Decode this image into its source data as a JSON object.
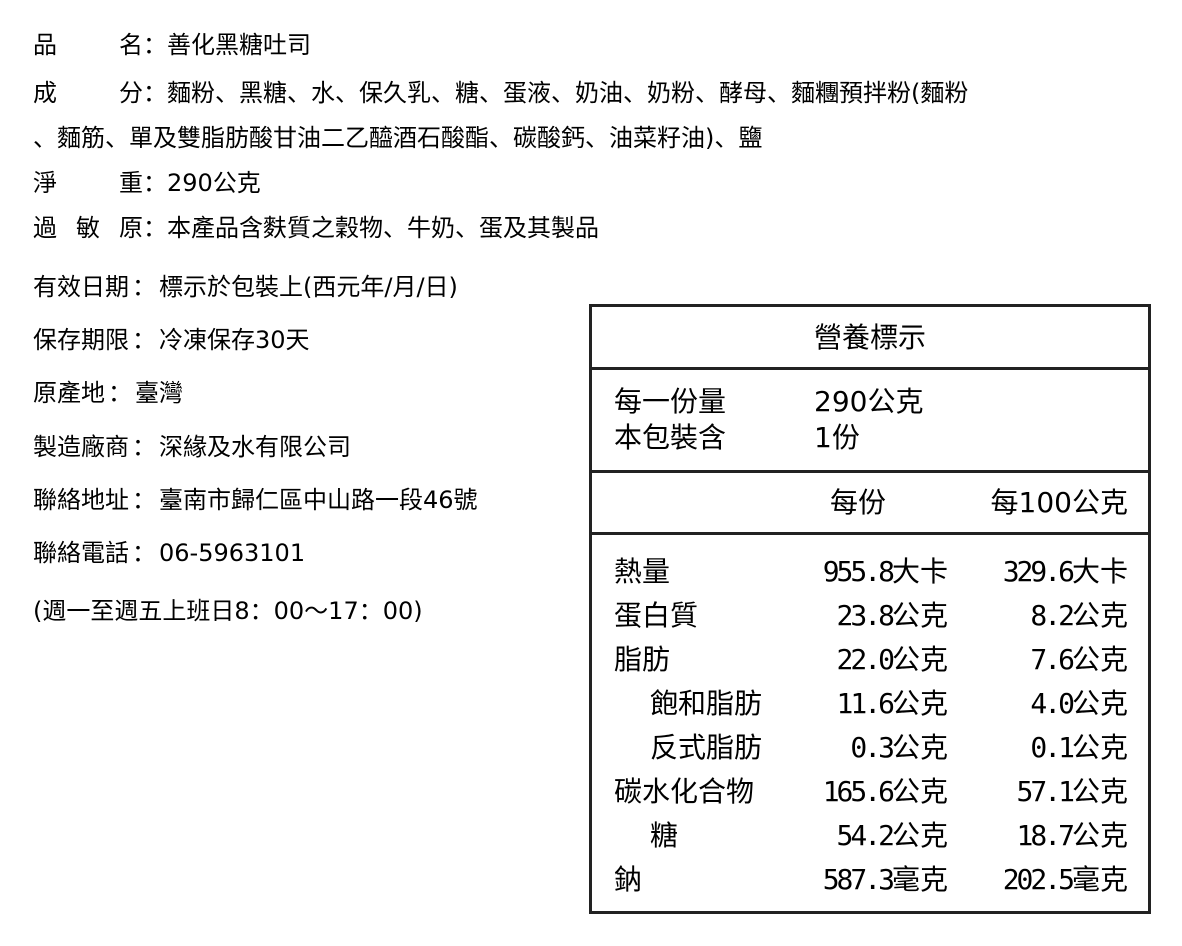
{
  "info_top": [
    {
      "label": "品名",
      "value": "善化黑糖吐司"
    },
    {
      "label": "成分",
      "value": "麵粉、黑糖、水、保久乳、糖、蛋液、奶油、奶粉、酵母、麵糰預拌粉(麵粉"
    },
    {
      "label": "",
      "value": "、麵筋、單及雙脂肪酸甘油二乙醯酒石酸酯、碳酸鈣、油菜籽油)、鹽"
    },
    {
      "label": "淨重",
      "value": "290公克"
    },
    {
      "label": "過敏原",
      "value": "本產品含麩質之穀物、牛奶、蛋及其製品"
    }
  ],
  "info_bottom": [
    {
      "label": "有效日期",
      "value": "標示於包裝上(西元年/月/日)"
    },
    {
      "label": "保存期限",
      "value": "冷凍保存30天"
    },
    {
      "label": "原產地",
      "value": "臺灣"
    },
    {
      "label": "製造廠商",
      "value": "深緣及水有限公司"
    },
    {
      "label": "聯絡地址",
      "value": "臺南市歸仁區中山路一段46號"
    },
    {
      "label": "聯絡電話",
      "value": "06-5963101"
    }
  ],
  "hours": "(週一至週五上班日8：00～17：00)",
  "colon": "：",
  "nutrition": {
    "title": "營養標示",
    "serving_label": "每一份量",
    "serving_value": "290公克",
    "servings_label": "本包裝含",
    "servings_value": "1份",
    "col_per_serving": "每份",
    "col_per_100": "每100公克",
    "rows": [
      {
        "name": "熱量",
        "per_serving": "955.8",
        "per_serving_unit": "大卡",
        "per_100": "329.6",
        "per_100_unit": "大卡"
      },
      {
        "name": "蛋白質",
        "per_serving": "23.8",
        "per_serving_unit": "公克",
        "per_100": "8.2",
        "per_100_unit": "公克"
      },
      {
        "name": "脂肪",
        "per_serving": "22.0",
        "per_serving_unit": "公克",
        "per_100": "7.6",
        "per_100_unit": "公克"
      },
      {
        "name": "飽和脂肪",
        "per_serving": "11.6",
        "per_serving_unit": "公克",
        "per_100": "4.0",
        "per_100_unit": "公克",
        "indent": true
      },
      {
        "name": "反式脂肪",
        "per_serving": "0.3",
        "per_serving_unit": "公克",
        "per_100": "0.1",
        "per_100_unit": "公克",
        "indent": true
      },
      {
        "name": "碳水化合物",
        "per_serving": "165.6",
        "per_serving_unit": "公克",
        "per_100": "57.1",
        "per_100_unit": "公克"
      },
      {
        "name": "糖",
        "per_serving": "54.2",
        "per_serving_unit": "公克",
        "per_100": "18.7",
        "per_100_unit": "公克",
        "indent": true
      },
      {
        "name": "鈉",
        "per_serving": "587.3",
        "per_serving_unit": "毫克",
        "per_100": "202.5",
        "per_100_unit": "毫克"
      }
    ]
  }
}
